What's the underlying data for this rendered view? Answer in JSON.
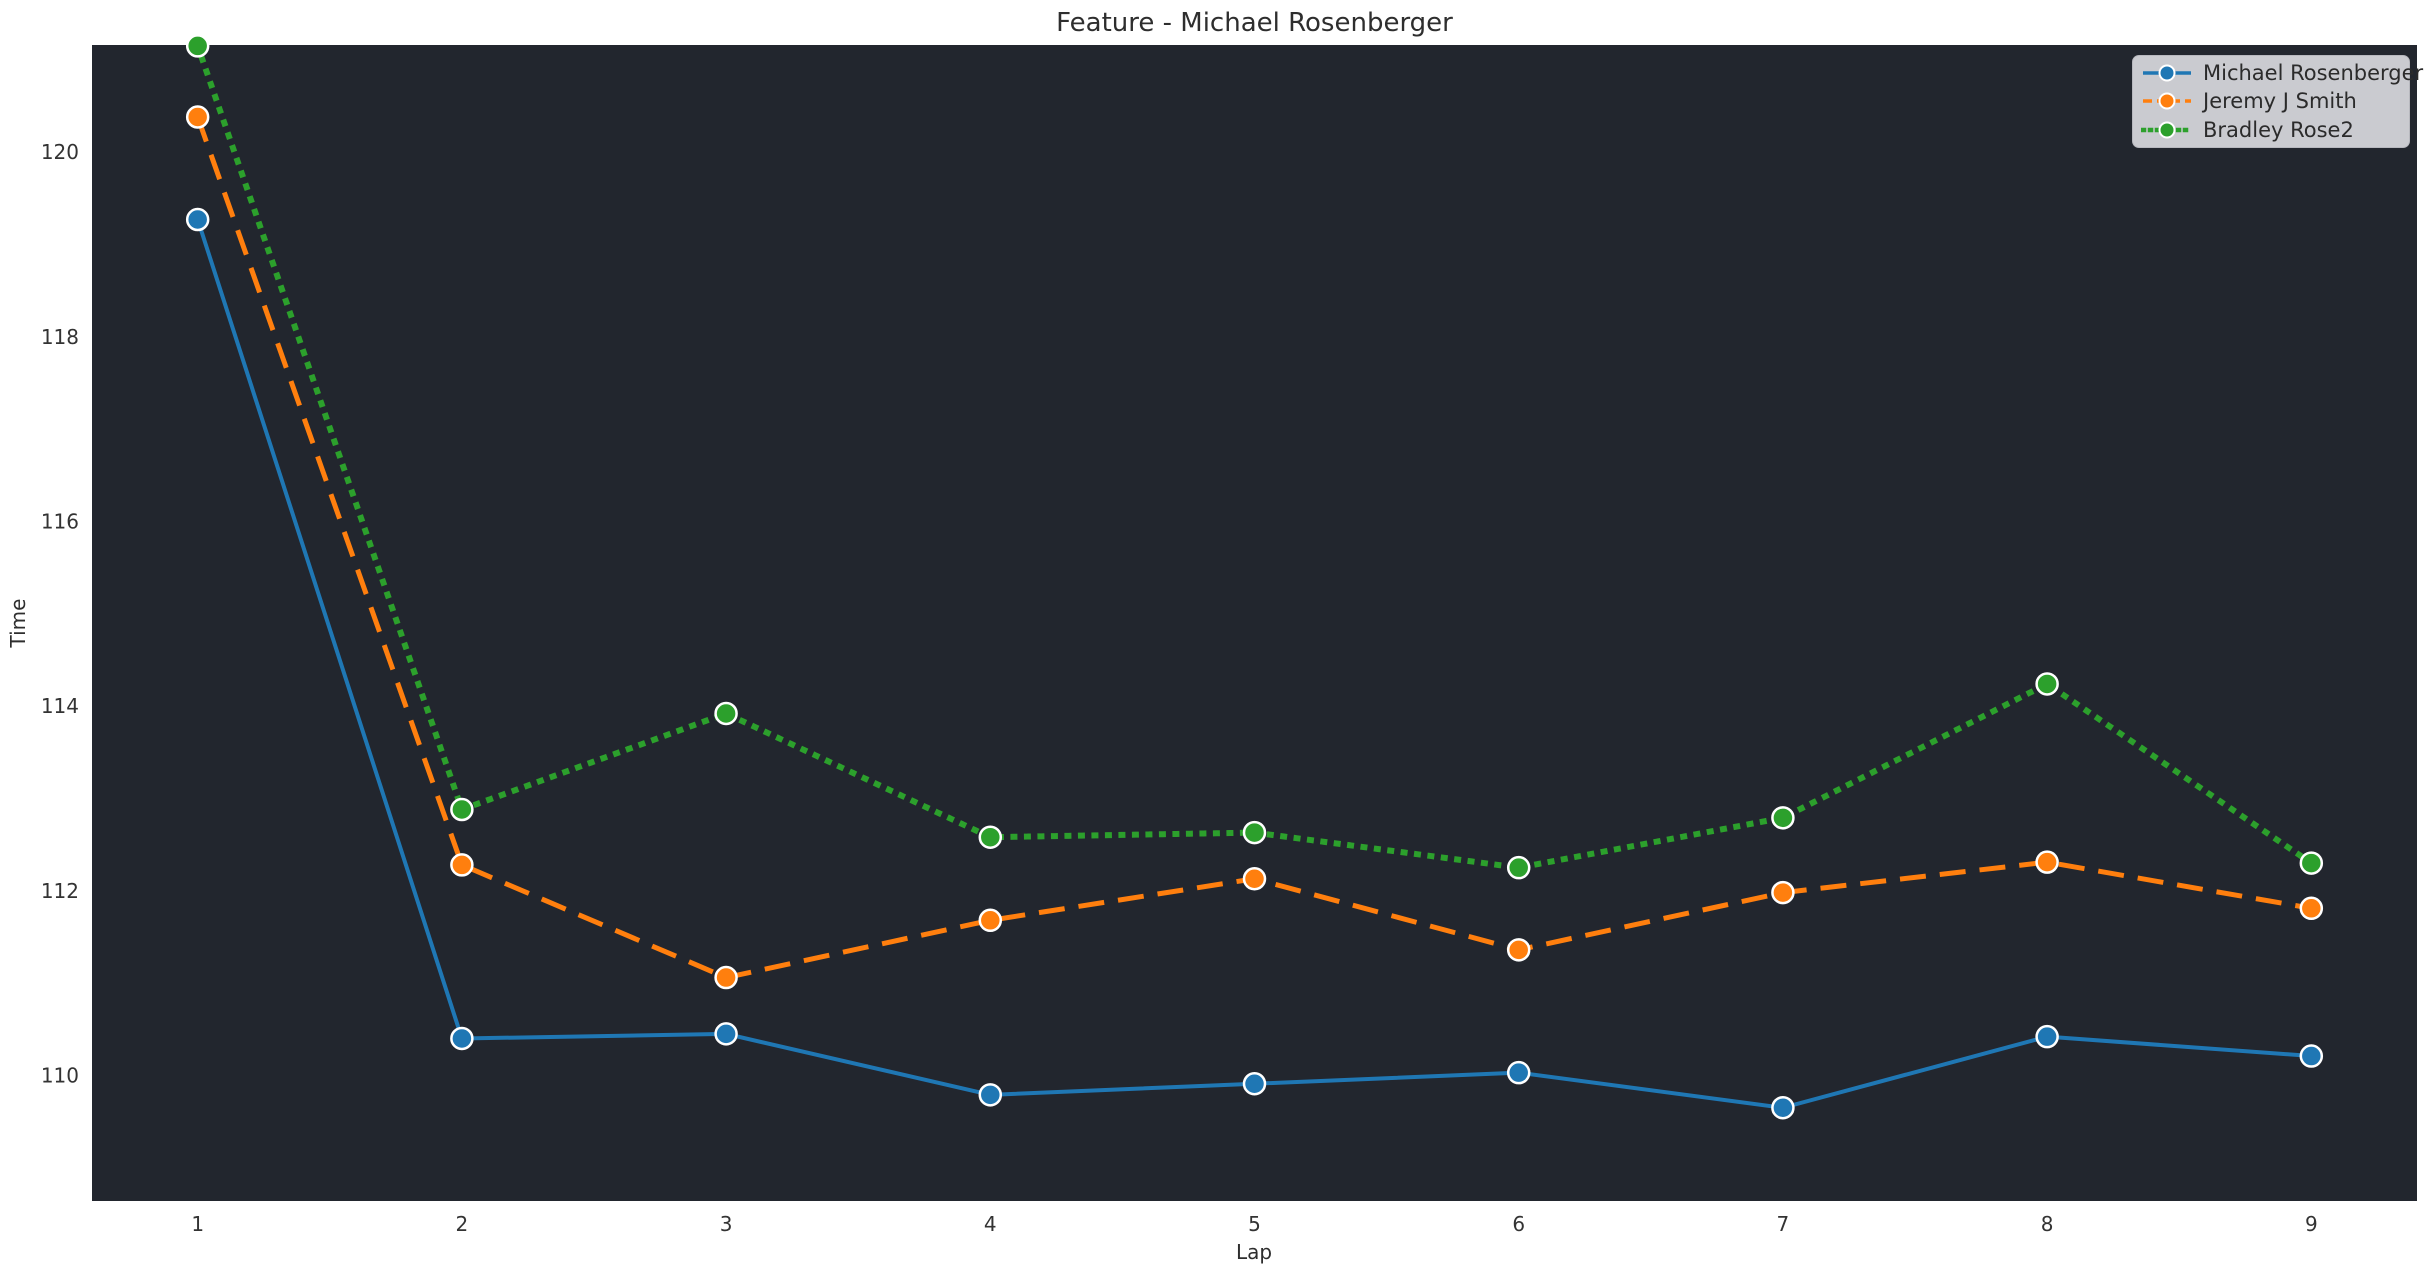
{
  "chart_data": {
    "type": "line",
    "title": "Feature - Michael Rosenberger",
    "xlabel": "Lap",
    "ylabel": "Time",
    "x": [
      1,
      2,
      3,
      4,
      5,
      6,
      7,
      8,
      9
    ],
    "series": [
      {
        "name": "Michael Rosenberger",
        "color": "#1f77b4",
        "line_style": "solid",
        "values": [
          119.27,
          110.4,
          110.45,
          109.79,
          109.91,
          110.03,
          109.65,
          110.42,
          110.21
        ]
      },
      {
        "name": "Jeremy J Smith",
        "color": "#ff7f0e",
        "line_style": "dashed",
        "values": [
          120.38,
          112.28,
          111.06,
          111.68,
          112.13,
          111.36,
          111.98,
          112.31,
          111.81
        ]
      },
      {
        "name": "Bradley Rose2",
        "color": "#2ca02c",
        "line_style": "dotted",
        "values": [
          121.15,
          112.88,
          113.92,
          112.58,
          112.63,
          112.25,
          112.79,
          114.24,
          112.3
        ]
      }
    ],
    "xticks": [
      "1",
      "2",
      "3",
      "4",
      "5",
      "6",
      "7",
      "8",
      "9"
    ],
    "yticks": [
      "110",
      "112",
      "114",
      "116",
      "118",
      "120"
    ],
    "ytick_values": [
      110,
      112,
      114,
      116,
      118,
      120
    ],
    "xlim": [
      0.6,
      9.4
    ],
    "ylim": [
      108.64,
      121.16
    ],
    "grid": false,
    "legend_position": "upper right",
    "colors": {
      "plot_bg": "#22262e",
      "page_bg": "#ffffff",
      "text": "#2e2e2e",
      "tick_text": "#333333",
      "legend_bg": "#cacbd0",
      "marker_edge": "#ffffff"
    }
  }
}
